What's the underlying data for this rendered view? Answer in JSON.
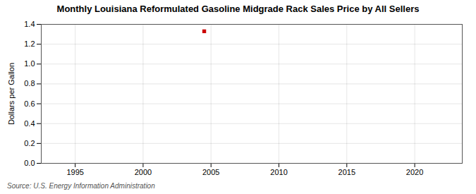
{
  "chart_data": {
    "type": "scatter",
    "title": "Monthly Louisiana Reformulated Gasoline Midgrade Rack Sales Price by All Sellers",
    "ylabel": "Dollars per Gallon",
    "source": "Source: U.S. Energy Information Administration",
    "x": [
      2004.5
    ],
    "values": [
      1.33
    ],
    "color": "#cc0000",
    "marker": "square",
    "xlim": [
      1992.5,
      2023.5
    ],
    "xticks": [
      1995,
      2000,
      2005,
      2010,
      2015,
      2020
    ],
    "ylim": [
      0.0,
      1.4
    ],
    "yticks": [
      {
        "value": 0,
        "label": "0.0"
      },
      0.2,
      0.4,
      0.6,
      0.8,
      {
        "value": 1,
        "label": "1.0"
      },
      1.2,
      1.4
    ],
    "grid": true
  }
}
